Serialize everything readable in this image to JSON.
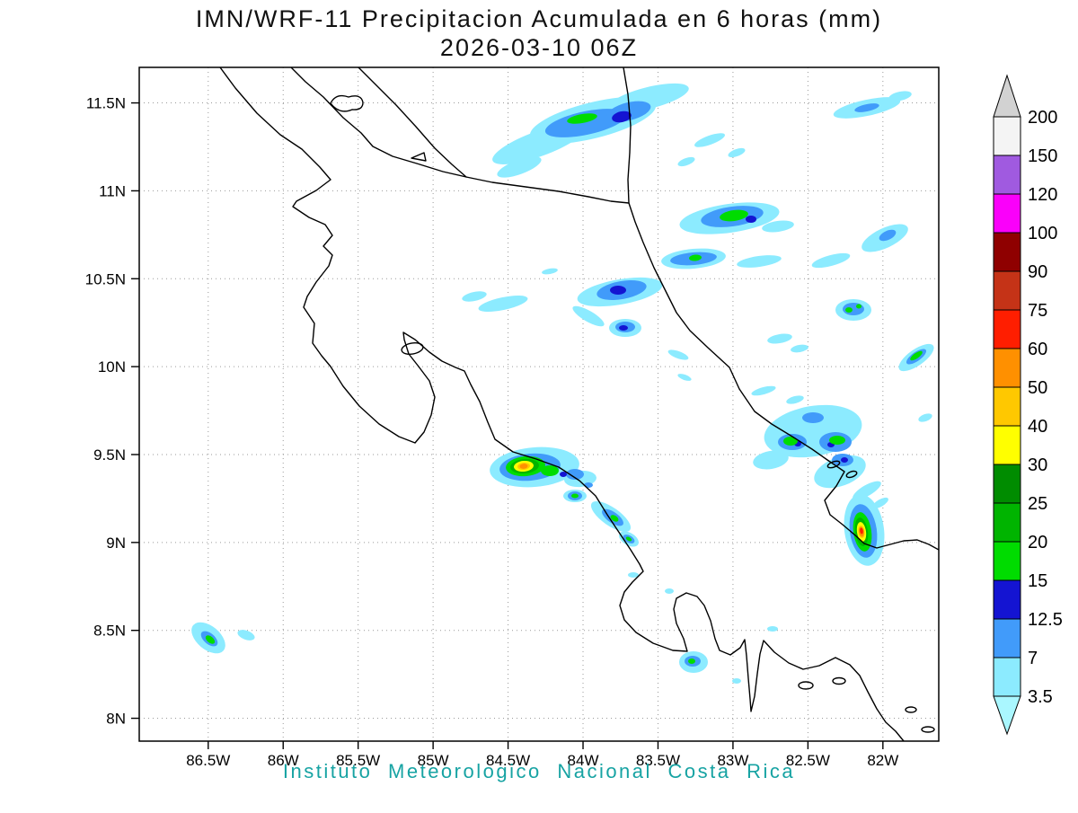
{
  "title": {
    "line1": "IMN/WRF-11 Precipitacion Acumulada en 6 horas (mm)",
    "line2": "2026-03-10 06Z"
  },
  "footer": {
    "text": "Instituto Meteorologico Nacional Costa Rica",
    "color": "#17a3a3"
  },
  "map": {
    "lat_ticks": [
      "11.5N",
      "11N",
      "10.5N",
      "10N",
      "9.5N",
      "9N",
      "8.5N",
      "8N"
    ],
    "lon_ticks": [
      "86.5W",
      "86W",
      "85.5W",
      "85W",
      "84.5W",
      "84W",
      "83.5W",
      "83W",
      "82.5W",
      "82W"
    ]
  },
  "legend": {
    "units": "mm",
    "labels_top_to_bottom": [
      "200",
      "150",
      "120",
      "100",
      "90",
      "75",
      "60",
      "50",
      "40",
      "30",
      "25",
      "20",
      "15",
      "12.5",
      "7",
      "3.5"
    ],
    "box_colors_top_to_bottom": [
      "#f4f4f4",
      "#a05ae0",
      "#fa00fa",
      "#8f0000",
      "#c53317",
      "#ff1e00",
      "#ff9000",
      "#ffc800",
      "#ffff00",
      "#008c00",
      "#00b400",
      "#00dc00",
      "#1414d2",
      "#419bfa",
      "#8cebff"
    ],
    "top_arrow_color": "#d2d2d2",
    "bottom_arrow_color": "#aaf7ff"
  },
  "chart_data": {
    "type": "heatmap",
    "title": "IMN/WRF-11 Precipitacion Acumulada en 6 horas (mm)",
    "valid_time": "2026-03-10 06Z",
    "lat_range": [
      "8N",
      "11.5N"
    ],
    "lon_range": [
      "86.5W",
      "82W"
    ],
    "contour_levels_mm": [
      3.5,
      7,
      12.5,
      15,
      20,
      25,
      30,
      40,
      50,
      60,
      75,
      90,
      100,
      120,
      150,
      200
    ],
    "legend_position": "right"
  }
}
